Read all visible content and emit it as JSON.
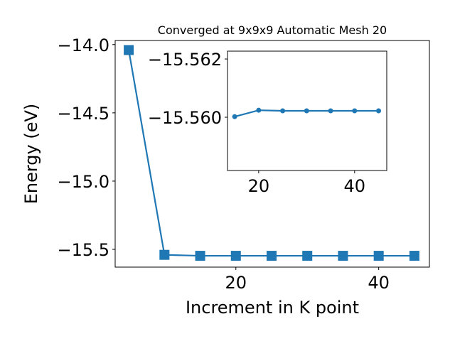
{
  "chart_data": [
    {
      "type": "line",
      "title": "Converged at 9x9x9 Automatic Mesh 20",
      "xlabel": "Increment in K point",
      "ylabel": "Energy (eV)",
      "x": [
        5,
        10,
        15,
        20,
        25,
        30,
        35,
        40,
        45
      ],
      "series": [
        {
          "color": "#1f77b4",
          "marker": "square",
          "values": [
            -14.04,
            -15.54,
            -15.547,
            -15.547,
            -15.547,
            -15.547,
            -15.547,
            -15.547,
            -15.547
          ]
        }
      ],
      "xlim": [
        3.1,
        47.1
      ],
      "ylim": [
        -15.63,
        -13.97
      ],
      "xticks": [
        20,
        40
      ],
      "yticks": [
        {
          "value": -15.5,
          "label": "−15.5"
        },
        {
          "value": -15.0,
          "label": "−15.0"
        },
        {
          "value": -14.5,
          "label": "−14.5"
        },
        {
          "value": -14.0,
          "label": "−14.0"
        }
      ]
    },
    {
      "type": "line",
      "x": [
        15,
        20,
        25,
        30,
        35,
        40,
        45
      ],
      "series": [
        {
          "color": "#1f77b4",
          "marker": "circle",
          "values": [
            -15.56002,
            -15.56024,
            -15.56022,
            -15.56022,
            -15.56022,
            -15.56022,
            -15.56022
          ]
        }
      ],
      "xlim": [
        13.5,
        46.7
      ],
      "ylim": [
        -15.55817,
        -15.56227
      ],
      "xticks": [
        20,
        40
      ],
      "yticks": [
        {
          "value": -15.56,
          "label": "−15.560"
        },
        {
          "value": -15.562,
          "label": "−15.562"
        }
      ]
    }
  ]
}
